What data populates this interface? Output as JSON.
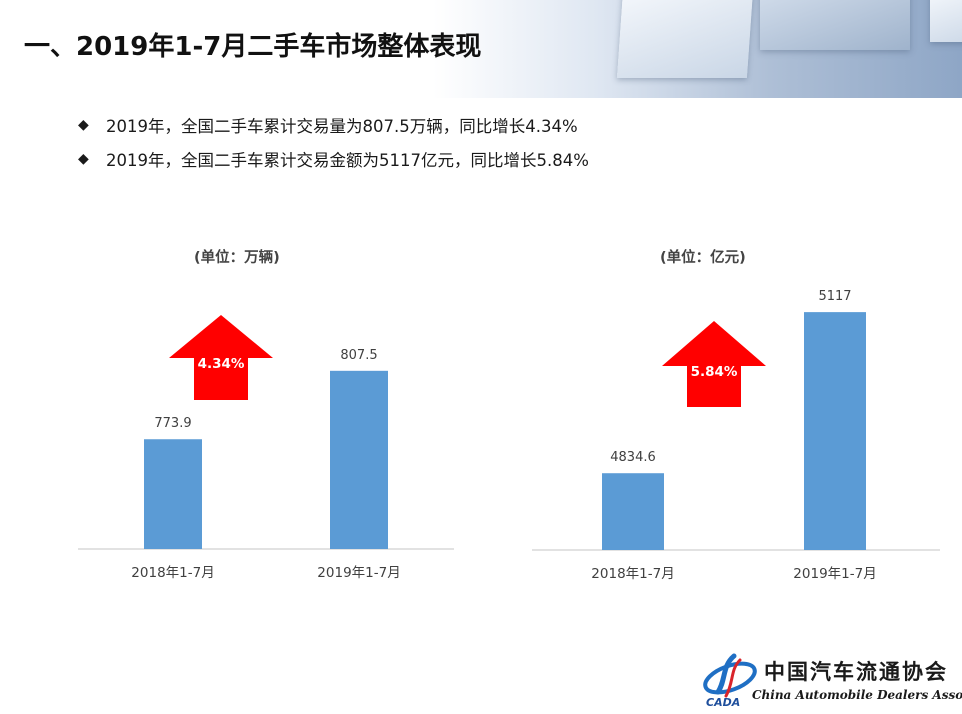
{
  "slide": {
    "title": "一、2019年1-7月二手车市场整体表现",
    "bullets": [
      "2019年，全国二手车累计交易量为807.5万辆，同比增长4.34%",
      "2019年，全国二手车累计交易金额为5117亿元，同比增长5.84%"
    ],
    "bullet_symbol": "◆"
  },
  "chart_data": [
    {
      "type": "bar",
      "title": "",
      "unit_label": "(单位：万辆)",
      "categories": [
        "2018年1-7月",
        "2019年1-7月"
      ],
      "values": [
        773.9,
        807.5
      ],
      "value_labels": [
        "773.9",
        "807.5"
      ],
      "growth_label": "4.34%",
      "bar_color": "#5b9bd5",
      "arrow_color": "#ff0000",
      "ylim": [
        720,
        830
      ]
    },
    {
      "type": "bar",
      "title": "",
      "unit_label": "(单位：亿元)",
      "categories": [
        "2018年1-7月",
        "2019年1-7月"
      ],
      "values": [
        4834.6,
        5117
      ],
      "value_labels": [
        "4834.6",
        "5117"
      ],
      "growth_label": "5.84%",
      "bar_color": "#5b9bd5",
      "arrow_color": "#ff0000",
      "ylim": [
        4700,
        5140
      ]
    }
  ],
  "logo": {
    "name_cn": "中国汽车流通协会",
    "name_en": "China Automobile Dealers Association",
    "abbr": "CADA"
  }
}
